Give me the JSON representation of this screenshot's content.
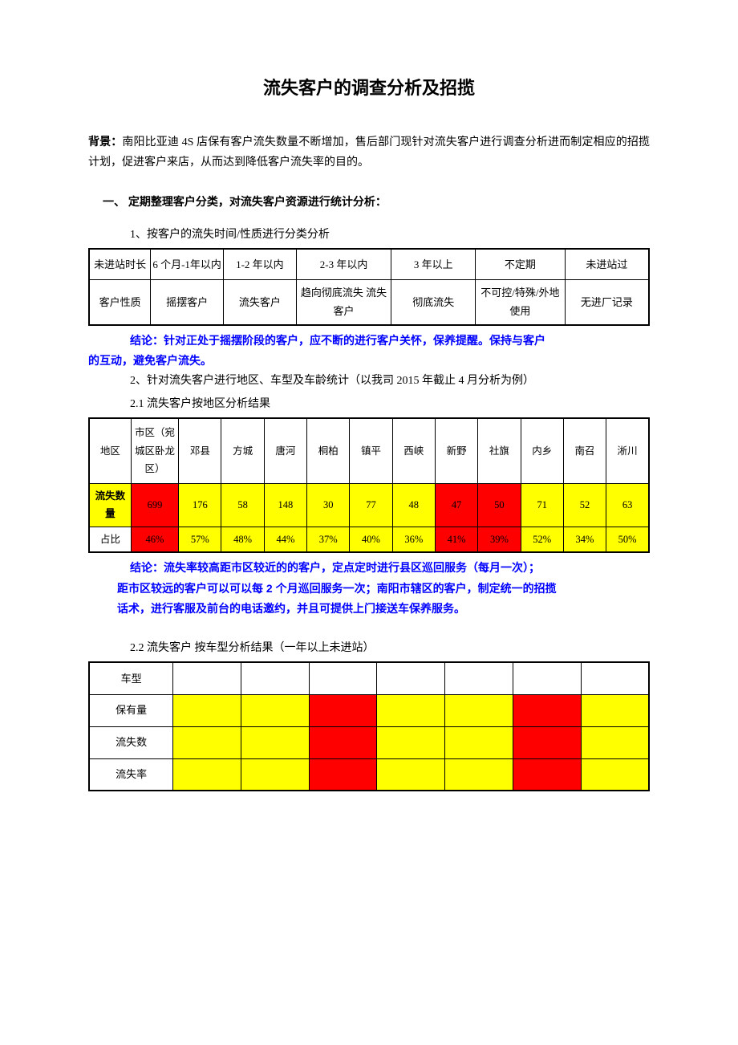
{
  "title": "流失客户的调查分析及招揽",
  "background_label": "背景：",
  "background_text": "南阳比亚迪 4S 店保有客户流失数量不断增加，售后部门现针对流失客户进行调查分析进而制定相应的招揽计划，促进客户来店，从而达到降低客户流失率的目的。",
  "section1": "一、 定期整理客户分类，对流失客户资源进行统计分析：",
  "sub1_1": "1、按客户的流失时间/性质进行分类分析",
  "table1": {
    "row1": [
      "未进站时长",
      "6 个月-1年以内",
      "1-2 年以内",
      "2-3 年以内",
      "3 年以上",
      "不定期",
      "未进站过"
    ],
    "row2": [
      "客户性质",
      "摇摆客户",
      "流失客户",
      "趋向彻底流失\n流失客户",
      "彻底流失",
      "不可控/特殊/外地使用",
      "无进厂记录"
    ]
  },
  "conclusion1a": "结论：针对正处于摇摆阶段的客户，应不断的进行客户关怀，保养提醒。保持与客户",
  "conclusion1b": "的互动，避免客户流失。",
  "sub1_2": "2、针对流失客户进行地区、车型及车龄统计（以我司 2015 年截止 4 月分析为例）",
  "sub1_2_1": "2.1 流失客户按地区分析结果",
  "table2": {
    "headers": [
      "地区",
      "市区（宛城区卧龙区）",
      "邓县",
      "方城",
      "唐河",
      "桐柏",
      "镇平",
      "西峡",
      "新野",
      "社旗",
      "内乡",
      "南召",
      "淅川"
    ],
    "row_loss_label": "流失数量",
    "row_loss": [
      "699",
      "176",
      "58",
      "148",
      "30",
      "77",
      "48",
      "47",
      "50",
      "71",
      "52",
      "63"
    ],
    "row_pct_label": "占比",
    "row_pct": [
      "46%",
      "57%",
      "48%",
      "44%",
      "37%",
      "40%",
      "36%",
      "41%",
      "39%",
      "52%",
      "34%",
      "50%"
    ],
    "loss_bg": [
      "red",
      "yellow",
      "yellow",
      "yellow",
      "yellow",
      "yellow",
      "yellow",
      "red",
      "red",
      "yellow",
      "yellow",
      "yellow"
    ],
    "pct_bg": [
      "red",
      "yellow",
      "yellow",
      "yellow",
      "yellow",
      "yellow",
      "yellow",
      "red",
      "red",
      "yellow",
      "yellow",
      "yellow"
    ],
    "label_bg": "yellow"
  },
  "conclusion2a": "结论：流失率较高距市区较近的的客户，定点定时进行县区巡回服务（每月一次）；",
  "conclusion2b": "距市区较远的客户可以可以每 2 个月巡回服务一次；南阳市辖区的客户，制定统一的招揽",
  "conclusion2c": "话术，进行客服及前台的电话邀约，并且可提供上门接送车保养服务。",
  "sub1_2_2": "2.2 流失客户 按车型分析结果（一年以上未进站）",
  "table3": {
    "rows": [
      "车型",
      "保有量",
      "流失数",
      "流失率"
    ],
    "cols": 7,
    "bg": {
      "1": [
        "",
        "yellow",
        "yellow",
        "red",
        "yellow",
        "yellow",
        "red",
        "yellow"
      ],
      "2": [
        "",
        "yellow",
        "yellow",
        "red",
        "yellow",
        "yellow",
        "red",
        "yellow"
      ],
      "3": [
        "",
        "yellow",
        "yellow",
        "red",
        "yellow",
        "yellow",
        "red",
        "yellow"
      ]
    }
  },
  "colors": {
    "highlight_yellow": "#ffff00",
    "highlight_red": "#ff0000",
    "link_blue": "#0000ff",
    "text": "#000000",
    "page_bg": "#ffffff"
  }
}
